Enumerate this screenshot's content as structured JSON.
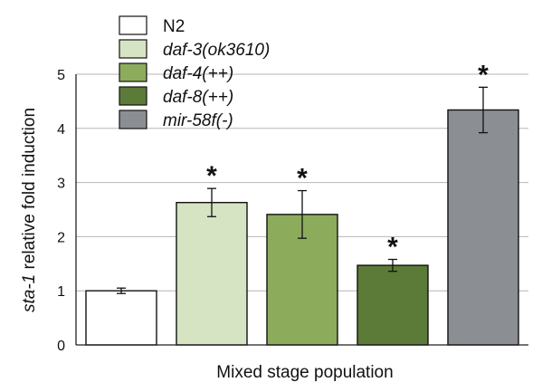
{
  "chart_data": {
    "type": "bar",
    "categories": [
      "N2",
      "daf-3(ok3610)",
      "daf-4(++)",
      "daf-8(++)",
      "mir-58f(-)"
    ],
    "values": [
      1.0,
      2.63,
      2.41,
      1.47,
      4.34
    ],
    "errors": [
      0.05,
      0.26,
      0.44,
      0.11,
      0.42
    ],
    "significant": [
      false,
      true,
      true,
      true,
      true
    ],
    "significance_mark": "*",
    "colors": [
      "#ffffff",
      "#d6e4c4",
      "#8cac5c",
      "#5c7a38",
      "#8b8f94"
    ],
    "title": "",
    "xlabel": "Mixed stage population",
    "ylabel_italic": "sta-1",
    "ylabel_rest": " relative fold induction",
    "ylim": [
      0,
      5
    ],
    "yticks": [
      0,
      1,
      2,
      3,
      4,
      5
    ],
    "grid": true,
    "legend": {
      "position": "top-left",
      "entries": [
        {
          "label": "N2",
          "italic": false
        },
        {
          "label": "daf-3(ok3610)",
          "italic": true
        },
        {
          "label": "daf-4(++)",
          "italic": true
        },
        {
          "label": "daf-8(++)",
          "italic": true
        },
        {
          "label": "mir-58f(-)",
          "italic": true
        }
      ]
    }
  }
}
